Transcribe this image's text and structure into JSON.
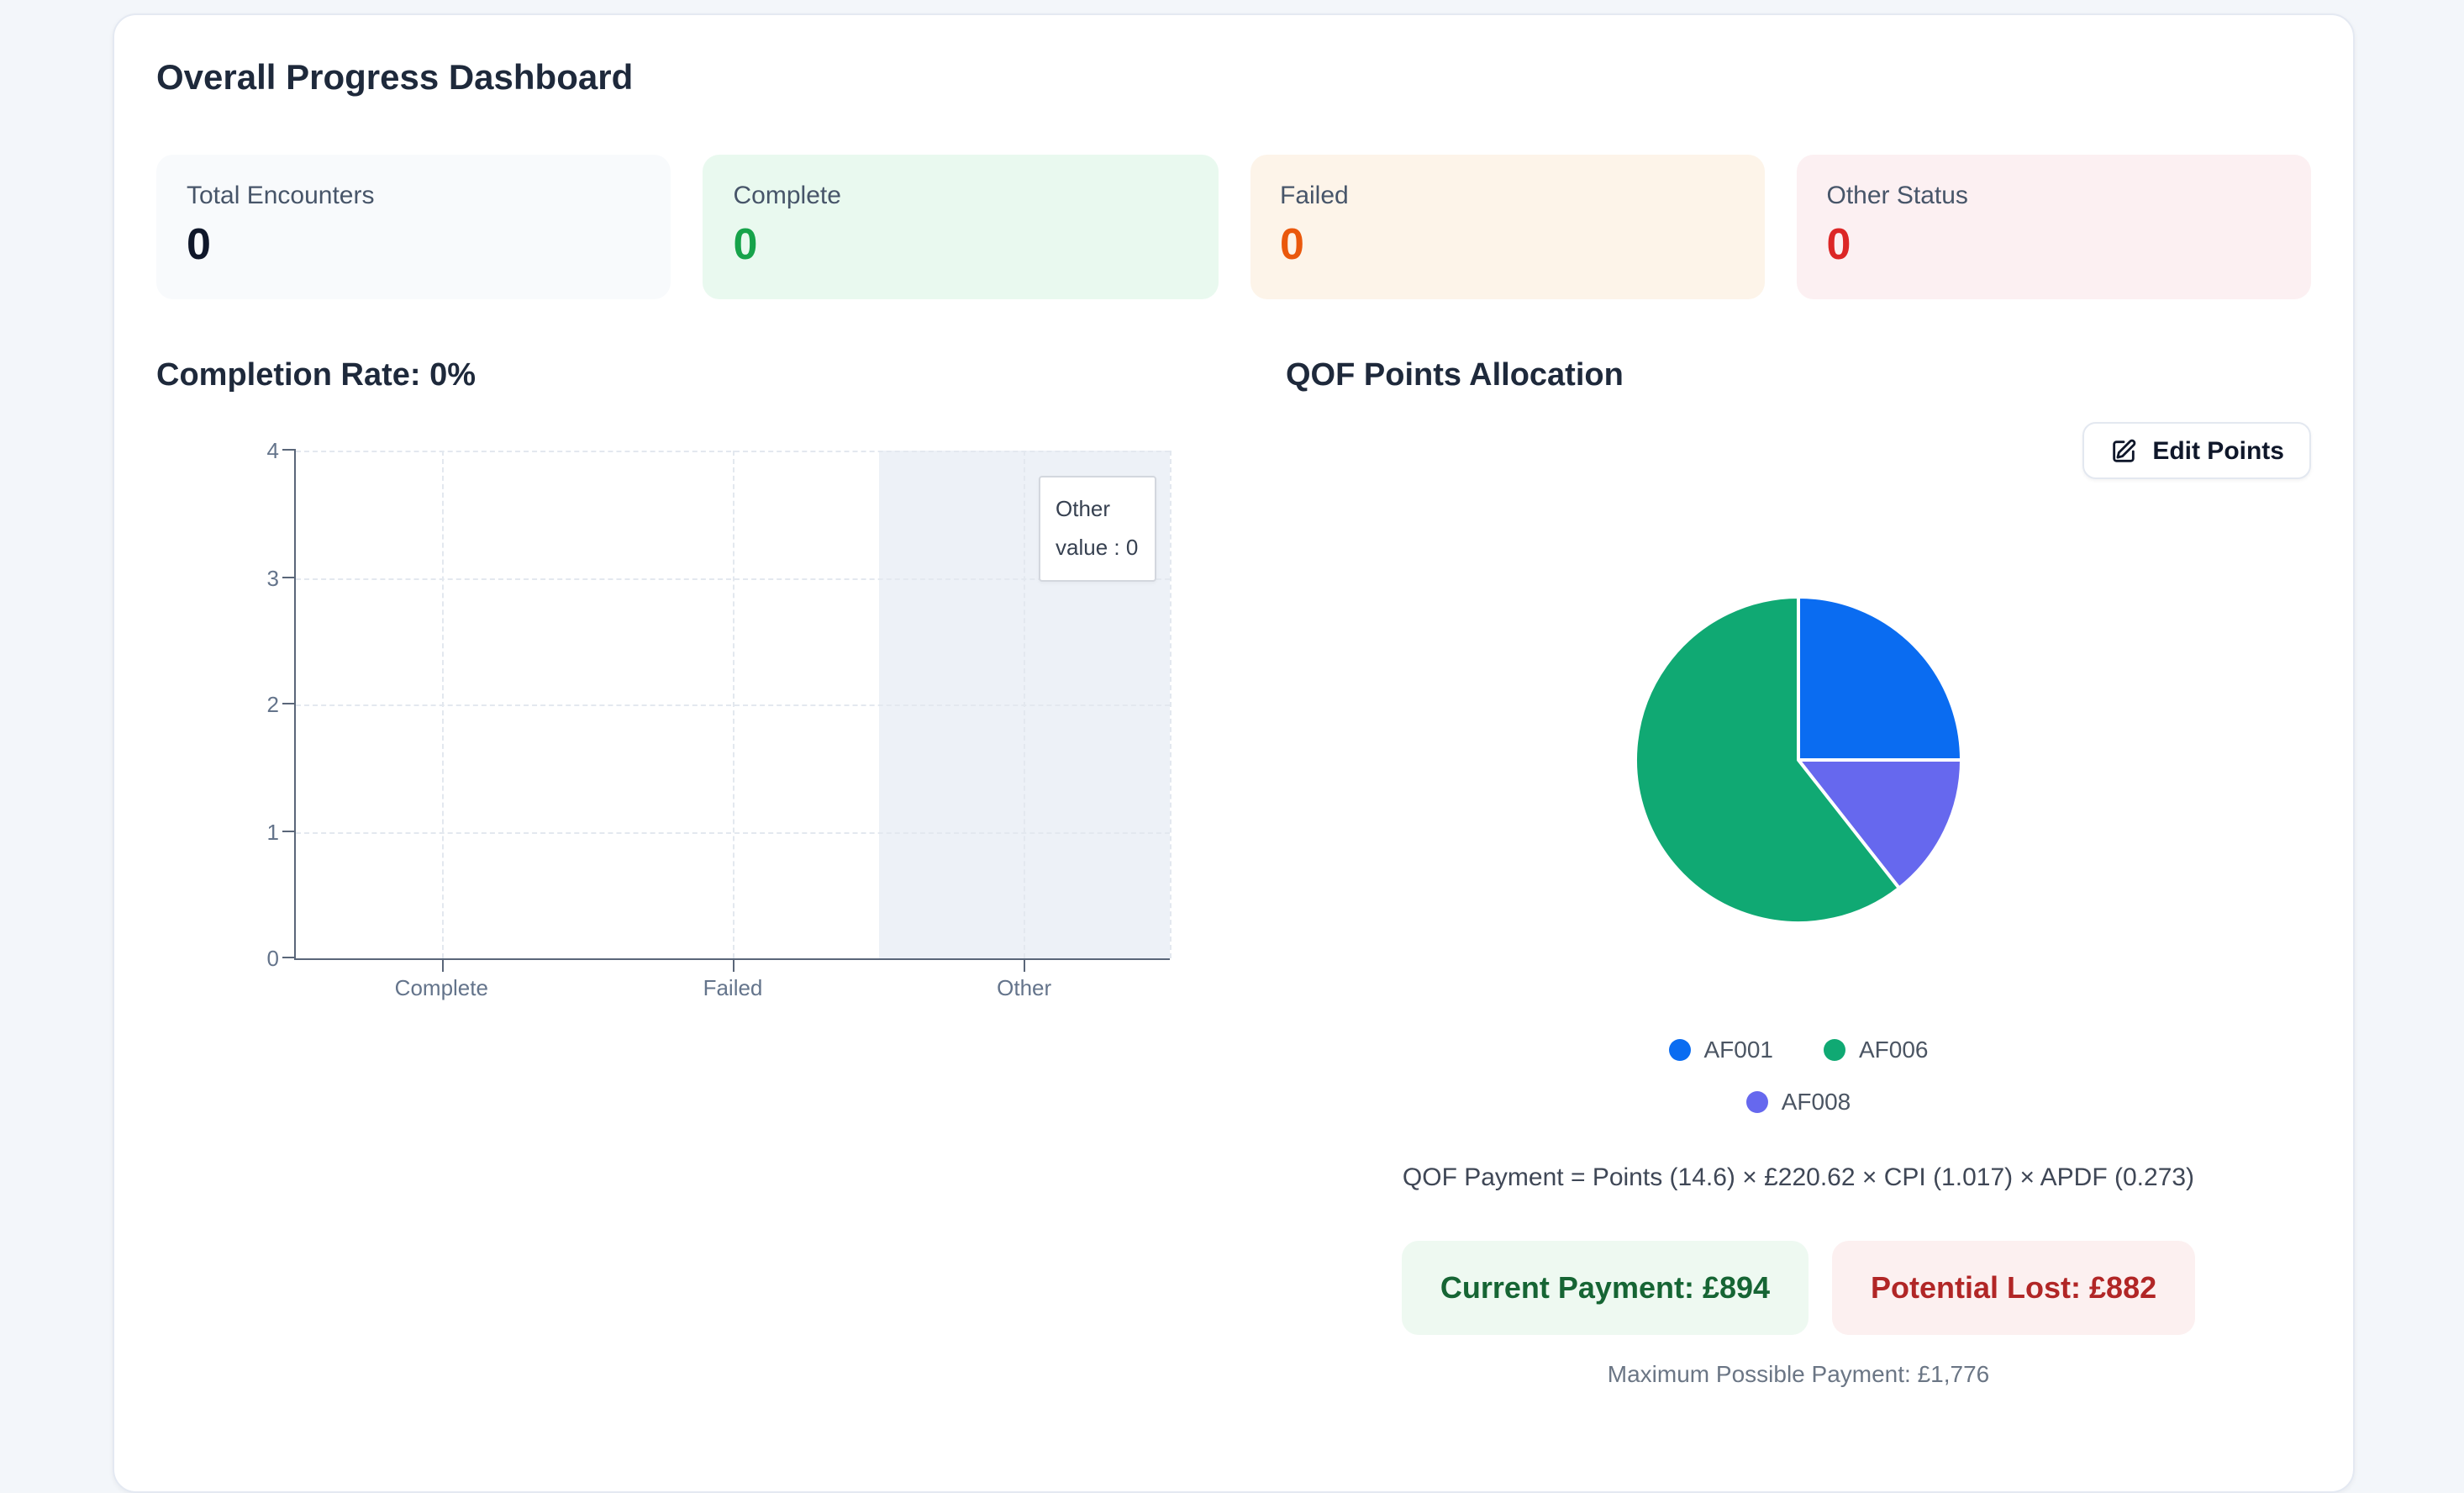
{
  "page": {
    "background_color": "#f3f6fa",
    "panel_color": "#ffffff"
  },
  "dashboard": {
    "title": "Overall Progress Dashboard",
    "stats": [
      {
        "label": "Total Encounters",
        "value": "0",
        "bg": "#f8fafc",
        "value_color": "#0f172a"
      },
      {
        "label": "Complete",
        "value": "0",
        "bg": "#e9f9ef",
        "value_color": "#16a34a"
      },
      {
        "label": "Failed",
        "value": "0",
        "bg": "#fdf4e9",
        "value_color": "#ea580c"
      },
      {
        "label": "Other Status",
        "value": "0",
        "bg": "#fcf0f2",
        "value_color": "#dc2626"
      }
    ],
    "completion": {
      "heading": "Completion Rate: 0%",
      "tooltip": {
        "label": "Other",
        "value_line": "value : 0"
      }
    },
    "qof": {
      "heading": "QOF Points Allocation",
      "edit_button_label": "Edit Points",
      "edit_button_icon": "pencil-square-icon",
      "formula": "QOF Payment = Points (14.6) × £220.62 × CPI (1.017) × APDF (0.273)",
      "current_payment": "Current Payment: £894",
      "potential_lost": "Potential Lost: £882",
      "max_payment": "Maximum Possible Payment: £1,776",
      "payment_colors": {
        "current_text": "#166534",
        "current_bg": "#eef9f1",
        "lost_text": "#b12626",
        "lost_bg": "#fcf0f0"
      }
    }
  },
  "chart_data": [
    {
      "type": "bar",
      "title": "Completion Rate: 0%",
      "categories": [
        "Complete",
        "Failed",
        "Other"
      ],
      "values": [
        0,
        0,
        0
      ],
      "xlabel": "",
      "ylabel": "",
      "ylim": [
        0,
        4
      ],
      "yticks": [
        0,
        1,
        2,
        3,
        4
      ],
      "grid": "dashed",
      "highlighted_category": "Other",
      "tooltip": {
        "title": "Other",
        "text": "value : 0"
      },
      "axis_color": "#5a6679",
      "grid_color": "#e3e8ef",
      "highlight_band_color": "#edf1f7",
      "tick_label_color": "#64748b"
    },
    {
      "type": "pie",
      "title": "QOF Points Allocation",
      "series": [
        {
          "name": "AF001",
          "percent": 25.0,
          "color": "#0a6cf1"
        },
        {
          "name": "AF006",
          "percent": 60.6,
          "color": "#10a973"
        },
        {
          "name": "AF008",
          "percent": 14.4,
          "color": "#6668ee"
        }
      ],
      "clockwise_draw_order": [
        0,
        2,
        1
      ],
      "start_angle_deg": 0,
      "legend_position": "bottom"
    }
  ]
}
